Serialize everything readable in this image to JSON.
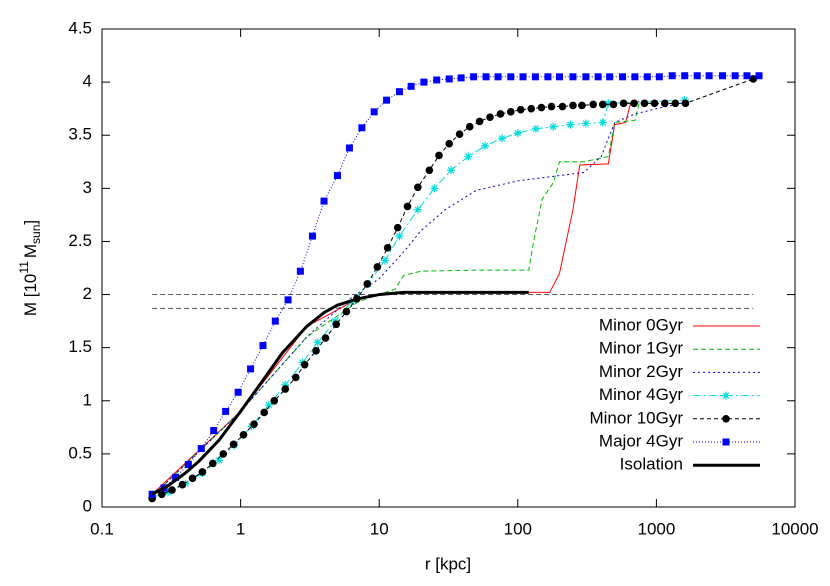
{
  "chart_data": {
    "type": "line",
    "xlabel": "r [kpc]",
    "ylabel_parts": [
      "M [10",
      "11",
      "M",
      "sun",
      "]"
    ],
    "xlog": true,
    "xlim": [
      0.1,
      10000
    ],
    "xticks": [
      0.1,
      1,
      10,
      100,
      1000,
      10000
    ],
    "ylim": [
      0,
      4.5
    ],
    "yticks": [
      0,
      0.5,
      1,
      1.5,
      2,
      2.5,
      3,
      3.5,
      4,
      4.5
    ],
    "legend": "right",
    "hlines": {
      "color": "#555555",
      "values": [
        2,
        1.87
      ],
      "x": [
        0.23,
        5000
      ]
    },
    "series": [
      {
        "name": "Minor 0Gyr",
        "color": "#ff0000",
        "dash": "none",
        "width": 1,
        "marker": "none",
        "x": [
          0.23,
          1,
          3,
          7,
          10,
          15,
          20,
          50,
          120,
          170,
          200,
          250,
          280,
          450,
          500,
          600,
          650,
          750
        ],
        "values": [
          0.12,
          0.9,
          1.7,
          1.96,
          2.0,
          2.02,
          2.02,
          2.02,
          2.02,
          2.02,
          2.2,
          2.8,
          3.22,
          3.23,
          3.6,
          3.62,
          3.8,
          3.82
        ]
      },
      {
        "name": "Minor 1Gyr",
        "color": "#00bb00",
        "dash": "5,3",
        "width": 1,
        "marker": "none",
        "x": [
          0.23,
          1,
          3,
          7,
          10,
          13,
          15,
          20,
          50,
          120,
          130,
          150,
          180,
          200,
          250,
          300,
          450,
          500,
          700,
          750
        ],
        "values": [
          0.1,
          0.9,
          1.6,
          1.93,
          2.0,
          2.05,
          2.18,
          2.22,
          2.23,
          2.23,
          2.5,
          2.9,
          3.05,
          3.25,
          3.25,
          3.25,
          3.3,
          3.62,
          3.64,
          3.8
        ]
      },
      {
        "name": "Minor 2Gyr",
        "color": "#0000cc",
        "dash": "2,3",
        "width": 1,
        "marker": "none",
        "x": [
          0.23,
          1,
          3,
          6,
          10,
          15,
          20,
          30,
          50,
          100,
          200,
          300,
          400,
          500,
          700,
          1000,
          1500,
          1700
        ],
        "values": [
          0.1,
          0.9,
          1.6,
          1.95,
          2.15,
          2.4,
          2.6,
          2.8,
          2.98,
          3.07,
          3.12,
          3.15,
          3.3,
          3.62,
          3.7,
          3.75,
          3.8,
          3.85
        ]
      },
      {
        "name": "Minor 4Gyr",
        "color": "#00dddd",
        "dash": "8,3,2,3",
        "width": 1,
        "marker": "star",
        "x": [
          0.23,
          0.3,
          0.4,
          0.53,
          0.7,
          0.9,
          1.2,
          1.6,
          2.1,
          2.8,
          3.6,
          4.8,
          6.3,
          8.3,
          11,
          14,
          19,
          25,
          33,
          44,
          58,
          77,
          100,
          135,
          180,
          240,
          310,
          410,
          450,
          1600
        ],
        "values": [
          0.09,
          0.14,
          0.22,
          0.32,
          0.44,
          0.58,
          0.76,
          0.96,
          1.15,
          1.36,
          1.55,
          1.75,
          1.93,
          2.1,
          2.32,
          2.55,
          2.8,
          3.0,
          3.17,
          3.3,
          3.4,
          3.47,
          3.52,
          3.56,
          3.58,
          3.6,
          3.61,
          3.62,
          3.8,
          3.83
        ]
      },
      {
        "name": "Minor 10Gyr",
        "color": "#000000",
        "dash": "4,3",
        "width": 1,
        "marker": "circle",
        "x": [
          0.23,
          0.27,
          0.32,
          0.38,
          0.45,
          0.53,
          0.63,
          0.75,
          0.89,
          1.05,
          1.25,
          1.48,
          1.75,
          2.1,
          2.5,
          2.9,
          3.5,
          4.1,
          4.9,
          5.8,
          6.9,
          8.2,
          9.7,
          11.5,
          13.6,
          16,
          19,
          23,
          27,
          32,
          38,
          45,
          53,
          63,
          75,
          89,
          105,
          125,
          148,
          175,
          210,
          250,
          290,
          350,
          410,
          490,
          580,
          690,
          820,
          970,
          1150,
          1370,
          1620,
          5000
        ],
        "values": [
          0.08,
          0.12,
          0.16,
          0.21,
          0.27,
          0.33,
          0.41,
          0.5,
          0.59,
          0.68,
          0.78,
          0.89,
          1.0,
          1.11,
          1.22,
          1.34,
          1.47,
          1.59,
          1.72,
          1.84,
          1.96,
          2.1,
          2.26,
          2.44,
          2.63,
          2.83,
          3.01,
          3.17,
          3.31,
          3.42,
          3.51,
          3.58,
          3.63,
          3.67,
          3.7,
          3.72,
          3.74,
          3.75,
          3.76,
          3.77,
          3.77,
          3.78,
          3.78,
          3.79,
          3.79,
          3.79,
          3.8,
          3.8,
          3.8,
          3.8,
          3.8,
          3.8,
          3.8,
          4.03
        ]
      },
      {
        "name": "Major 4Gyr",
        "color": "#0000ff",
        "dash": "1,2",
        "width": 1,
        "marker": "square",
        "x": [
          0.23,
          0.28,
          0.34,
          0.42,
          0.52,
          0.64,
          0.78,
          0.96,
          1.18,
          1.45,
          1.78,
          2.2,
          2.7,
          3.3,
          4,
          5,
          6.1,
          7.5,
          9.2,
          11.3,
          14,
          17,
          21,
          26,
          32,
          39,
          48,
          59,
          72,
          89,
          109,
          134,
          165,
          200,
          250,
          310,
          380,
          460,
          570,
          700,
          860,
          1050,
          1300,
          1600,
          1970,
          2400,
          3000,
          3700,
          4500,
          5500
        ],
        "values": [
          0.12,
          0.18,
          0.28,
          0.4,
          0.55,
          0.72,
          0.9,
          1.08,
          1.3,
          1.52,
          1.75,
          1.95,
          2.22,
          2.55,
          2.88,
          3.12,
          3.38,
          3.57,
          3.72,
          3.83,
          3.91,
          3.96,
          4.0,
          4.02,
          4.03,
          4.04,
          4.05,
          4.05,
          4.05,
          4.05,
          4.05,
          4.05,
          4.05,
          4.05,
          4.05,
          4.05,
          4.05,
          4.05,
          4.05,
          4.05,
          4.05,
          4.05,
          4.06,
          4.06,
          4.06,
          4.06,
          4.06,
          4.06,
          4.06,
          4.06
        ]
      },
      {
        "name": "Isolation",
        "color": "#000000",
        "dash": "none",
        "width": 3,
        "marker": "none",
        "x": [
          0.23,
          0.3,
          0.4,
          0.5,
          0.7,
          1,
          1.5,
          2,
          3,
          4,
          5,
          7,
          10,
          15,
          20,
          50,
          120
        ],
        "values": [
          0.12,
          0.2,
          0.32,
          0.43,
          0.63,
          0.9,
          1.22,
          1.45,
          1.7,
          1.83,
          1.9,
          1.96,
          2.0,
          2.02,
          2.02,
          2.02,
          2.02
        ]
      }
    ]
  }
}
